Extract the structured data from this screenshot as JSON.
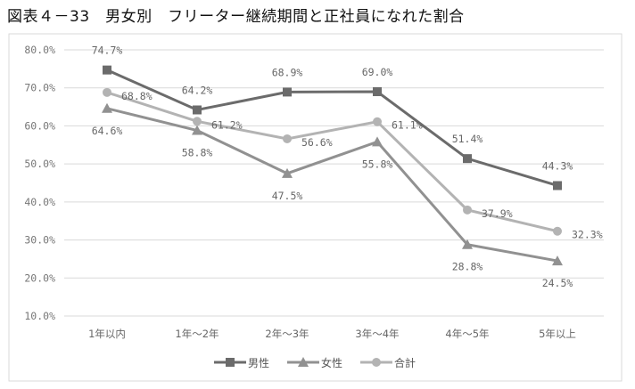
{
  "title": "図表４－33　男女別　フリーター継続期間と正社員になれた割合",
  "chart_data": {
    "type": "line",
    "title": "図表４－33　男女別　フリーター継続期間と正社員になれた割合",
    "categories": [
      "1年以内",
      "1年～2年",
      "2年～3年",
      "3年～4年",
      "4年～5年",
      "5年以上"
    ],
    "ylim": [
      10,
      80
    ],
    "yticks": [
      "80.0%",
      "70.0%",
      "60.0%",
      "50.0%",
      "40.0%",
      "30.0%",
      "20.0%",
      "10.0%"
    ],
    "grid": true,
    "legend_position": "bottom",
    "series": [
      {
        "name": "男性",
        "marker": "square",
        "color": "#6b6b6b",
        "values": [
          74.7,
          64.2,
          68.9,
          69.0,
          51.4,
          44.3
        ],
        "labels": [
          "74.7%",
          "64.2%",
          "68.9%",
          "69.0%",
          "51.4%",
          "44.3%"
        ]
      },
      {
        "name": "女性",
        "marker": "triangle",
        "color": "#919191",
        "values": [
          64.6,
          58.8,
          47.5,
          55.8,
          28.8,
          24.5
        ],
        "labels": [
          "64.6%",
          "58.8%",
          "47.5%",
          "55.8%",
          "28.8%",
          "24.5%"
        ]
      },
      {
        "name": "合計",
        "marker": "circle",
        "color": "#b3b3b3",
        "values": [
          68.8,
          61.2,
          56.6,
          61.1,
          37.9,
          32.3
        ],
        "labels": [
          "68.8%",
          "61.2%",
          "56.6%",
          "61.1%",
          "37.9%",
          "32.3%"
        ]
      }
    ]
  }
}
